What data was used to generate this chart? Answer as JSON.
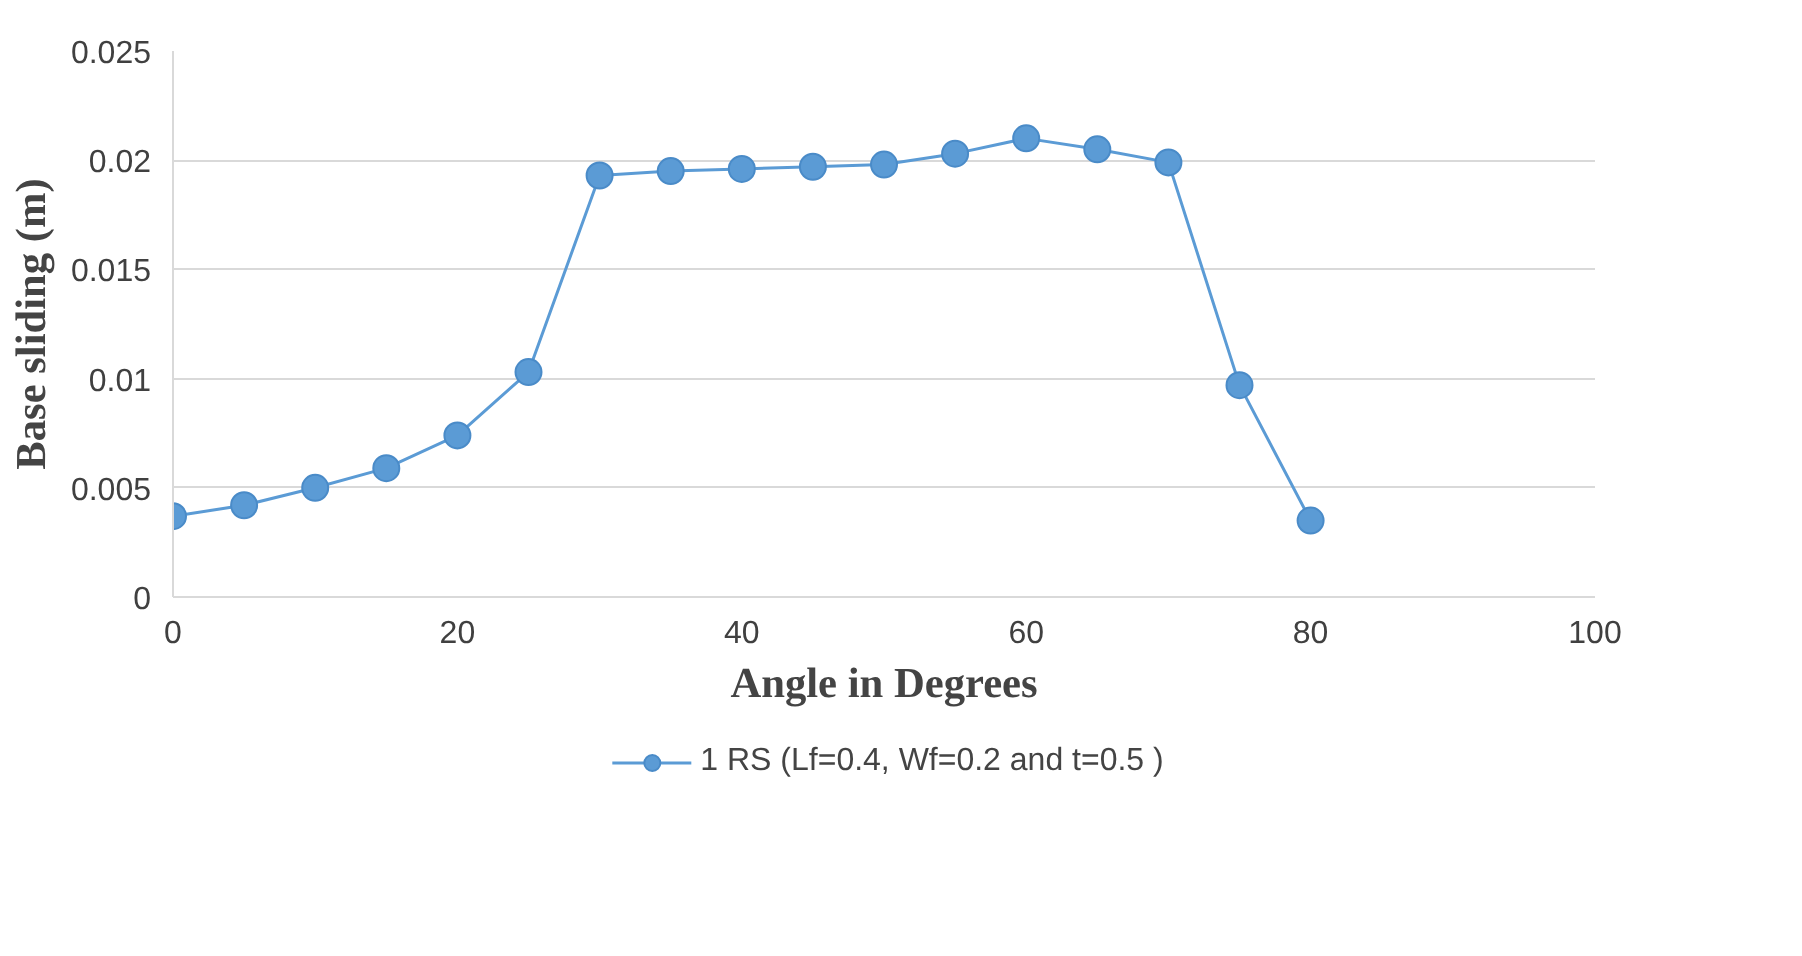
{
  "chart_data": {
    "type": "line",
    "xlabel": "Angle in Degrees",
    "ylabel": "Base sliding (m)",
    "x": [
      0,
      5,
      10,
      15,
      20,
      25,
      30,
      35,
      40,
      45,
      50,
      55,
      60,
      65,
      70,
      75,
      80
    ],
    "series": [
      {
        "name": "1 RS (Lf=0.4, Wf=0.2 and t=0.5 )",
        "color": "#5b9bd5",
        "values": [
          0.0037,
          0.0042,
          0.005,
          0.0059,
          0.0074,
          0.0103,
          0.0193,
          0.0195,
          0.0196,
          0.0197,
          0.0198,
          0.0203,
          0.021,
          0.0205,
          0.0199,
          0.0097,
          0.0035
        ]
      }
    ],
    "xlim": [
      0,
      100
    ],
    "xticks": [
      0,
      20,
      40,
      60,
      80,
      100
    ],
    "ylim": [
      0,
      0.025
    ],
    "yticks": [
      0,
      0.005,
      0.01,
      0.015,
      0.02,
      0.025
    ],
    "grid": "y",
    "legend": "bottom",
    "marker": "circle",
    "line_style": "solid"
  }
}
